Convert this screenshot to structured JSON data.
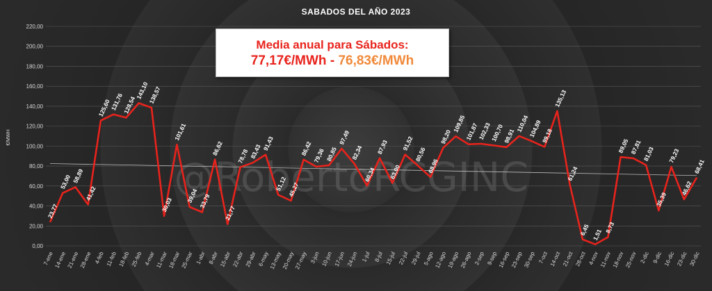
{
  "watermark": "@RobertoRCGINC",
  "info_box": {
    "heading": "Media anual para Sábados:",
    "value_a": "77,17€/MWh",
    "separator": " - ",
    "value_b": "76,83€/MWh",
    "color_a": "#e8231c",
    "color_b": "#f08a3a"
  },
  "chart_data": {
    "type": "line",
    "title": "SABADOS DEL AÑO 2023",
    "ylabel": "€/MWH",
    "ylim": [
      0,
      220
    ],
    "y_ticks": [
      "0,00",
      "20,00",
      "40,00",
      "60,00",
      "80,00",
      "100,00",
      "120,00",
      "140,00",
      "160,00",
      "180,00",
      "200,00",
      "220,00"
    ],
    "grid": true,
    "line_color": "#e8231c",
    "trendline": {
      "start": 82.5,
      "end": 70.5,
      "color": "#bfbfbf"
    },
    "categories": [
      "7-ene",
      "14-ene",
      "21-ene",
      "28-ene",
      "4-feb",
      "11-feb",
      "18-feb",
      "25-feb",
      "4-mar",
      "11-mar",
      "18-mar",
      "25-mar",
      "1-abr",
      "8-abr",
      "15-abr",
      "22-abr",
      "29-abr",
      "6-may",
      "13-may",
      "20-may",
      "27-may",
      "3-jun",
      "10-jun",
      "17-jun",
      "24-jun",
      "1-jul",
      "8-jul",
      "15-jul",
      "22-jul",
      "29-jul",
      "5-ago",
      "12-ago",
      "19-ago",
      "26-ago",
      "2-sep",
      "9-sep",
      "16-sep",
      "23-sep",
      "30-sep",
      "7-oct",
      "14-oct",
      "21-oct",
      "28-oct",
      "4-nov",
      "11-nov",
      "18-nov",
      "25-nov",
      "2-dic",
      "9-dic",
      "16-dic",
      "23-dic",
      "30-dic"
    ],
    "values": [
      23.77,
      53.0,
      58.89,
      41.42,
      125.6,
      131.76,
      128.54,
      143.1,
      138.57,
      30.03,
      101.61,
      39.04,
      33.79,
      86.62,
      21.77,
      78.78,
      83.43,
      91.43,
      51.12,
      45.27,
      86.42,
      79.36,
      80.85,
      97.49,
      82.34,
      60.34,
      87.93,
      63.0,
      91.52,
      80.56,
      68.96,
      98.2,
      109.85,
      101.87,
      102.33,
      100.7,
      98.91,
      110.04,
      104.89,
      99.18,
      135.13,
      61.24,
      6.45,
      1.51,
      8.73,
      89.05,
      87.81,
      81.03,
      35.39,
      79.23,
      46.62,
      68.41
    ],
    "labels": [
      "23,77",
      "53,00",
      "58,89",
      "41,42",
      "125,60",
      "131,76",
      "128,54",
      "143,10",
      "138,57",
      "30,03",
      "101,61",
      "39,04",
      "33,79",
      "86,62",
      "21,77",
      "78,78",
      "83,43",
      "91,43",
      "51,12",
      "45,27",
      "86,42",
      "79,36",
      "80,85",
      "97,49",
      "82,34",
      "60,34",
      "87,93",
      "63,00",
      "91,52",
      "80,56",
      "68,96",
      "98,20",
      "109,85",
      "101,87",
      "102,33",
      "100,70",
      "98,91",
      "110,04",
      "104,89",
      "99,18",
      "135,13",
      "61,24",
      "6,45",
      "1,51",
      "8,73",
      "89,05",
      "87,81",
      "81,03",
      "35,39",
      "79,23",
      "46,62",
      "68,41"
    ]
  }
}
